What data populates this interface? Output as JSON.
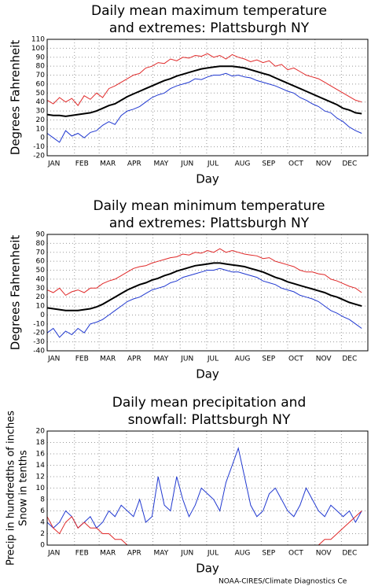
{
  "chart_data": [
    {
      "type": "line",
      "title": [
        "Daily mean maximum temperature",
        "and extremes: Plattsburgh NY"
      ],
      "xlabel": "Day",
      "ylabel": "Degrees Fahrenheit",
      "x": [
        1,
        8,
        15,
        22,
        29,
        36,
        43,
        50,
        57,
        64,
        71,
        78,
        85,
        92,
        99,
        106,
        113,
        120,
        127,
        134,
        141,
        148,
        155,
        162,
        169,
        176,
        183,
        190,
        197,
        204,
        211,
        218,
        225,
        232,
        239,
        246,
        253,
        260,
        267,
        274,
        281,
        288,
        295,
        302,
        309,
        316,
        323,
        330,
        337,
        344,
        351,
        358
      ],
      "xlim": [
        1,
        365
      ],
      "xticks": [
        {
          "value": 1,
          "label": "JAN"
        },
        {
          "value": 32,
          "label": "FEB"
        },
        {
          "value": 60,
          "label": "MAR"
        },
        {
          "value": 91,
          "label": "APR"
        },
        {
          "value": 121,
          "label": "MAY"
        },
        {
          "value": 152,
          "label": "JUN"
        },
        {
          "value": 182,
          "label": "JUL"
        },
        {
          "value": 213,
          "label": "AUG"
        },
        {
          "value": 244,
          "label": "SEP"
        },
        {
          "value": 274,
          "label": "OCT"
        },
        {
          "value": 305,
          "label": "NOV"
        },
        {
          "value": 335,
          "label": "DEC"
        }
      ],
      "ylim": [
        -20,
        110
      ],
      "yticks": [
        -20,
        -10,
        0,
        10,
        20,
        30,
        40,
        50,
        60,
        70,
        80,
        90,
        100,
        110
      ],
      "grid": true,
      "series": [
        {
          "color": "#e02828",
          "values": [
            42,
            38,
            45,
            40,
            44,
            36,
            47,
            43,
            50,
            45,
            55,
            58,
            62,
            66,
            70,
            72,
            78,
            80,
            84,
            83,
            88,
            86,
            90,
            89,
            92,
            91,
            94,
            90,
            92,
            88,
            93,
            90,
            88,
            85,
            87,
            84,
            86,
            80,
            82,
            76,
            78,
            74,
            70,
            68,
            66,
            62,
            58,
            54,
            50,
            46,
            42,
            40
          ]
        },
        {
          "color": "#2038d0",
          "values": [
            5,
            0,
            -5,
            8,
            2,
            5,
            0,
            6,
            8,
            14,
            18,
            15,
            25,
            30,
            32,
            35,
            40,
            45,
            48,
            50,
            55,
            58,
            60,
            62,
            66,
            65,
            68,
            70,
            70,
            72,
            69,
            70,
            68,
            67,
            64,
            62,
            60,
            58,
            55,
            52,
            50,
            45,
            42,
            38,
            35,
            30,
            28,
            22,
            18,
            12,
            8,
            5
          ]
        },
        {
          "color": "#000000",
          "width": 2,
          "values": [
            26,
            25,
            25,
            24,
            25,
            26,
            27,
            28,
            30,
            33,
            36,
            38,
            42,
            46,
            49,
            52,
            55,
            58,
            61,
            64,
            66,
            69,
            71,
            73,
            75,
            77,
            78,
            79,
            80,
            80,
            80,
            79,
            78,
            76,
            74,
            72,
            70,
            67,
            64,
            61,
            58,
            55,
            52,
            49,
            46,
            43,
            40,
            37,
            33,
            31,
            28,
            27
          ]
        }
      ]
    },
    {
      "type": "line",
      "title": [
        "Daily mean minimum temperature",
        "and extremes: Plattsburgh NY"
      ],
      "xlabel": "Day",
      "ylabel": "Degrees Fahrenheit",
      "x": [
        1,
        8,
        15,
        22,
        29,
        36,
        43,
        50,
        57,
        64,
        71,
        78,
        85,
        92,
        99,
        106,
        113,
        120,
        127,
        134,
        141,
        148,
        155,
        162,
        169,
        176,
        183,
        190,
        197,
        204,
        211,
        218,
        225,
        232,
        239,
        246,
        253,
        260,
        267,
        274,
        281,
        288,
        295,
        302,
        309,
        316,
        323,
        330,
        337,
        344,
        351,
        358
      ],
      "xlim": [
        1,
        365
      ],
      "xticks": [
        {
          "value": 1,
          "label": "JAN"
        },
        {
          "value": 32,
          "label": "FEB"
        },
        {
          "value": 60,
          "label": "MAR"
        },
        {
          "value": 91,
          "label": "APR"
        },
        {
          "value": 121,
          "label": "MAY"
        },
        {
          "value": 152,
          "label": "JUN"
        },
        {
          "value": 182,
          "label": "JUL"
        },
        {
          "value": 213,
          "label": "AUG"
        },
        {
          "value": 244,
          "label": "SEP"
        },
        {
          "value": 274,
          "label": "OCT"
        },
        {
          "value": 305,
          "label": "NOV"
        },
        {
          "value": 335,
          "label": "DEC"
        }
      ],
      "ylim": [
        -40,
        90
      ],
      "yticks": [
        -40,
        -30,
        -20,
        -10,
        0,
        10,
        20,
        30,
        40,
        50,
        60,
        70,
        80,
        90
      ],
      "grid": true,
      "series": [
        {
          "color": "#e02828",
          "values": [
            28,
            25,
            30,
            22,
            26,
            28,
            25,
            30,
            30,
            35,
            38,
            40,
            44,
            48,
            52,
            54,
            55,
            58,
            60,
            62,
            64,
            65,
            68,
            67,
            70,
            69,
            72,
            70,
            74,
            70,
            72,
            70,
            68,
            67,
            66,
            63,
            64,
            60,
            58,
            56,
            54,
            50,
            48,
            48,
            46,
            45,
            40,
            38,
            35,
            32,
            30,
            25
          ]
        },
        {
          "color": "#2038d0",
          "values": [
            -20,
            -15,
            -25,
            -18,
            -22,
            -15,
            -20,
            -10,
            -8,
            -5,
            0,
            5,
            10,
            15,
            18,
            20,
            24,
            28,
            30,
            32,
            36,
            38,
            42,
            44,
            46,
            48,
            50,
            50,
            52,
            50,
            48,
            48,
            46,
            44,
            42,
            38,
            36,
            34,
            30,
            28,
            26,
            22,
            20,
            18,
            15,
            10,
            5,
            2,
            -2,
            -5,
            -10,
            -15
          ]
        },
        {
          "color": "#000000",
          "width": 2,
          "values": [
            8,
            7,
            6,
            5,
            5,
            5,
            6,
            7,
            9,
            12,
            16,
            20,
            24,
            28,
            31,
            34,
            36,
            39,
            41,
            44,
            46,
            49,
            51,
            53,
            55,
            56,
            57,
            58,
            58,
            57,
            56,
            55,
            54,
            52,
            50,
            48,
            45,
            42,
            40,
            37,
            35,
            33,
            31,
            29,
            27,
            25,
            22,
            20,
            17,
            14,
            12,
            10
          ]
        }
      ]
    },
    {
      "type": "line",
      "title": [
        "Daily mean precipitation and",
        "snowfall: Plattsburgh NY"
      ],
      "xlabel": "Day",
      "ylabel": [
        "Precip in hundredths of inches",
        "Snow in tenths"
      ],
      "x": [
        1,
        8,
        15,
        22,
        29,
        36,
        43,
        50,
        57,
        64,
        71,
        78,
        85,
        92,
        99,
        106,
        113,
        120,
        127,
        134,
        141,
        148,
        155,
        162,
        169,
        176,
        183,
        190,
        197,
        204,
        211,
        218,
        225,
        232,
        239,
        246,
        253,
        260,
        267,
        274,
        281,
        288,
        295,
        302,
        309,
        316,
        323,
        330,
        337,
        344,
        351,
        358
      ],
      "xlim": [
        1,
        365
      ],
      "xticks": [
        {
          "value": 1,
          "label": "JAN"
        },
        {
          "value": 32,
          "label": "FEB"
        },
        {
          "value": 60,
          "label": "MAR"
        },
        {
          "value": 91,
          "label": "APR"
        },
        {
          "value": 121,
          "label": "MAY"
        },
        {
          "value": 152,
          "label": "JUN"
        },
        {
          "value": 182,
          "label": "JUL"
        },
        {
          "value": 213,
          "label": "AUG"
        },
        {
          "value": 244,
          "label": "SEP"
        },
        {
          "value": 274,
          "label": "OCT"
        },
        {
          "value": 305,
          "label": "NOV"
        },
        {
          "value": 335,
          "label": "DEC"
        }
      ],
      "ylim": [
        0,
        20
      ],
      "yticks": [
        0,
        2,
        4,
        6,
        8,
        10,
        12,
        14,
        16,
        18,
        20
      ],
      "grid": true,
      "series": [
        {
          "color": "#2038d0",
          "values": [
            4,
            3,
            4,
            6,
            5,
            3,
            4,
            5,
            3,
            4,
            6,
            5,
            7,
            6,
            5,
            8,
            4,
            5,
            12,
            7,
            6,
            12,
            8,
            5,
            7,
            10,
            9,
            8,
            6,
            11,
            14,
            17,
            12,
            7,
            5,
            6,
            9,
            10,
            8,
            6,
            5,
            7,
            10,
            8,
            6,
            5,
            7,
            6,
            5,
            6,
            4,
            6
          ]
        },
        {
          "color": "#e02828",
          "values": [
            5,
            3,
            2,
            4,
            5,
            3,
            4,
            3,
            3,
            2,
            2,
            1,
            1,
            0,
            0,
            0,
            0,
            0,
            0,
            0,
            0,
            0,
            0,
            0,
            0,
            0,
            0,
            0,
            0,
            0,
            0,
            0,
            0,
            0,
            0,
            0,
            0,
            0,
            0,
            0,
            0,
            0,
            0,
            0,
            0,
            1,
            1,
            2,
            3,
            4,
            5,
            6
          ]
        }
      ]
    }
  ],
  "credit": "NOAA-CIRES/Climate Diagnostics Ce"
}
